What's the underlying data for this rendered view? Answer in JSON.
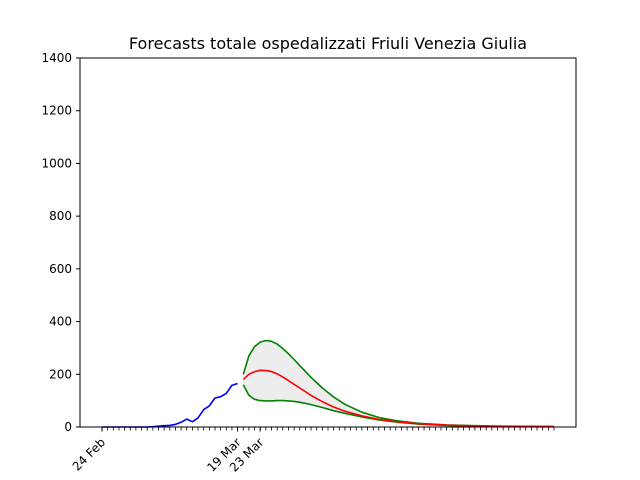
{
  "chart_data": {
    "type": "line",
    "title": "Forecasts totale ospedalizzati Friuli Venezia Giulia",
    "xlabel": "",
    "ylabel": "",
    "ylim": [
      0,
      1400
    ],
    "y_ticks": [
      0,
      200,
      400,
      600,
      800,
      1000,
      1200,
      1400
    ],
    "x_range": [
      "2020-02-24",
      "2020-05-14"
    ],
    "x_tick_labels": [
      {
        "date": "2020-02-24",
        "label": "24 Feb"
      },
      {
        "date": "2020-03-19",
        "label": "19 Mar"
      },
      {
        "date": "2020-03-23",
        "label": "23 Mar"
      }
    ],
    "minor_ticks": "daily",
    "grid": false,
    "legend": "none",
    "colors": {
      "observed": "#0000ff",
      "forecast": "#ff0000",
      "bounds": "#008000",
      "band": "#ececec"
    },
    "series": [
      {
        "role": "observed",
        "points": [
          [
            "2020-02-24",
            0
          ],
          [
            "2020-02-25",
            0
          ],
          [
            "2020-02-26",
            0
          ],
          [
            "2020-02-27",
            0
          ],
          [
            "2020-02-28",
            0
          ],
          [
            "2020-02-29",
            0
          ],
          [
            "2020-03-01",
            0
          ],
          [
            "2020-03-02",
            0
          ],
          [
            "2020-03-03",
            0
          ],
          [
            "2020-03-04",
            1
          ],
          [
            "2020-03-05",
            3
          ],
          [
            "2020-03-06",
            5
          ],
          [
            "2020-03-07",
            6
          ],
          [
            "2020-03-08",
            10
          ],
          [
            "2020-03-09",
            18
          ],
          [
            "2020-03-10",
            30
          ],
          [
            "2020-03-11",
            20
          ],
          [
            "2020-03-12",
            35
          ],
          [
            "2020-03-13",
            66
          ],
          [
            "2020-03-14",
            80
          ],
          [
            "2020-03-15",
            110
          ],
          [
            "2020-03-16",
            115
          ],
          [
            "2020-03-17",
            128
          ],
          [
            "2020-03-18",
            158
          ],
          [
            "2020-03-19",
            165
          ]
        ]
      },
      {
        "role": "forecast",
        "points": [
          [
            "2020-03-20",
            180
          ],
          [
            "2020-03-21",
            200
          ],
          [
            "2020-03-22",
            210
          ],
          [
            "2020-03-23",
            215
          ],
          [
            "2020-03-24",
            214
          ],
          [
            "2020-03-25",
            210
          ],
          [
            "2020-03-26",
            202
          ],
          [
            "2020-03-27",
            190
          ],
          [
            "2020-03-28",
            176
          ],
          [
            "2020-03-29",
            162
          ],
          [
            "2020-03-30",
            148
          ],
          [
            "2020-04-01",
            120
          ],
          [
            "2020-04-03",
            96
          ],
          [
            "2020-04-05",
            76
          ],
          [
            "2020-04-07",
            60
          ],
          [
            "2020-04-10",
            42
          ],
          [
            "2020-04-13",
            29
          ],
          [
            "2020-04-16",
            20
          ],
          [
            "2020-04-20",
            12
          ],
          [
            "2020-04-25",
            7
          ],
          [
            "2020-04-30",
            4
          ],
          [
            "2020-05-05",
            2
          ],
          [
            "2020-05-14",
            1
          ]
        ]
      },
      {
        "role": "upper_bound",
        "points": [
          [
            "2020-03-20",
            200
          ],
          [
            "2020-03-21",
            270
          ],
          [
            "2020-03-22",
            305
          ],
          [
            "2020-03-23",
            322
          ],
          [
            "2020-03-24",
            328
          ],
          [
            "2020-03-25",
            325
          ],
          [
            "2020-03-26",
            315
          ],
          [
            "2020-03-27",
            298
          ],
          [
            "2020-03-28",
            278
          ],
          [
            "2020-03-29",
            256
          ],
          [
            "2020-03-30",
            233
          ],
          [
            "2020-04-01",
            188
          ],
          [
            "2020-04-03",
            148
          ],
          [
            "2020-04-05",
            114
          ],
          [
            "2020-04-07",
            86
          ],
          [
            "2020-04-10",
            56
          ],
          [
            "2020-04-13",
            36
          ],
          [
            "2020-04-16",
            24
          ],
          [
            "2020-04-20",
            14
          ],
          [
            "2020-04-25",
            8
          ],
          [
            "2020-04-30",
            5
          ],
          [
            "2020-05-05",
            3
          ],
          [
            "2020-05-14",
            2
          ]
        ]
      },
      {
        "role": "lower_bound",
        "points": [
          [
            "2020-03-20",
            160
          ],
          [
            "2020-03-21",
            120
          ],
          [
            "2020-03-22",
            105
          ],
          [
            "2020-03-23",
            100
          ],
          [
            "2020-03-24",
            99
          ],
          [
            "2020-03-25",
            99
          ],
          [
            "2020-03-26",
            100
          ],
          [
            "2020-03-27",
            100
          ],
          [
            "2020-03-28",
            99
          ],
          [
            "2020-03-29",
            97
          ],
          [
            "2020-03-30",
            94
          ],
          [
            "2020-04-01",
            85
          ],
          [
            "2020-04-03",
            74
          ],
          [
            "2020-04-05",
            62
          ],
          [
            "2020-04-07",
            52
          ],
          [
            "2020-04-10",
            38
          ],
          [
            "2020-04-13",
            27
          ],
          [
            "2020-04-16",
            19
          ],
          [
            "2020-04-20",
            11
          ],
          [
            "2020-04-25",
            6
          ],
          [
            "2020-04-30",
            3
          ],
          [
            "2020-05-05",
            2
          ],
          [
            "2020-05-14",
            1
          ]
        ]
      }
    ]
  }
}
